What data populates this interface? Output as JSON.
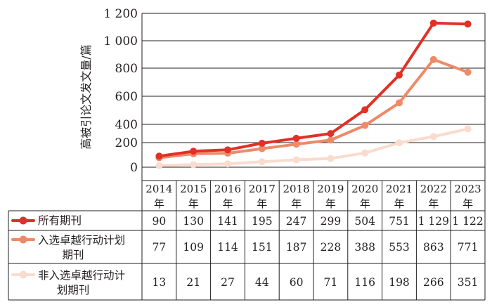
{
  "chart_data": {
    "type": "line",
    "ylabel": "高被引论文发文量/篇",
    "ylim": [
      0,
      1200
    ],
    "yticks": [
      {
        "value": 0,
        "label": "0"
      },
      {
        "value": 200,
        "label": "200"
      },
      {
        "value": 400,
        "label": "400"
      },
      {
        "value": 600,
        "label": "600"
      },
      {
        "value": 800,
        "label": "800"
      },
      {
        "value": 1000,
        "label": "1 000"
      },
      {
        "value": 1200,
        "label": "1 200"
      }
    ],
    "grid": true,
    "legend": "table-left",
    "categories": [
      "2014",
      "2015",
      "2016",
      "2017",
      "2018",
      "2019",
      "2020",
      "2021",
      "2022",
      "2023"
    ],
    "category_suffix": "年",
    "series": [
      {
        "name": "所有期刊",
        "color": "#e03127",
        "values": [
          90,
          130,
          141,
          195,
          247,
          299,
          504,
          751,
          1129,
          1122
        ],
        "value_labels": [
          "90",
          "130",
          "141",
          "195",
          "247",
          "299",
          "504",
          "751",
          "1 129",
          "1 122"
        ]
      },
      {
        "name": "入选卓越行动计划期刊",
        "name_lines": [
          "入选卓越行动计划",
          "期刊"
        ],
        "color": "#ee8a68",
        "values": [
          77,
          109,
          114,
          151,
          187,
          228,
          388,
          553,
          863,
          771
        ],
        "value_labels": [
          "77",
          "109",
          "114",
          "151",
          "187",
          "228",
          "388",
          "553",
          "863",
          "771"
        ]
      },
      {
        "name": "非入选卓越行动计划期刊",
        "name_lines": [
          "非入选卓越行动计",
          "划期刊"
        ],
        "color": "#f9dccd",
        "values": [
          13,
          21,
          27,
          44,
          60,
          71,
          116,
          198,
          266,
          351
        ],
        "value_labels": [
          "13",
          "21",
          "27",
          "44",
          "60",
          "71",
          "116",
          "198",
          "266",
          "351"
        ]
      }
    ]
  }
}
